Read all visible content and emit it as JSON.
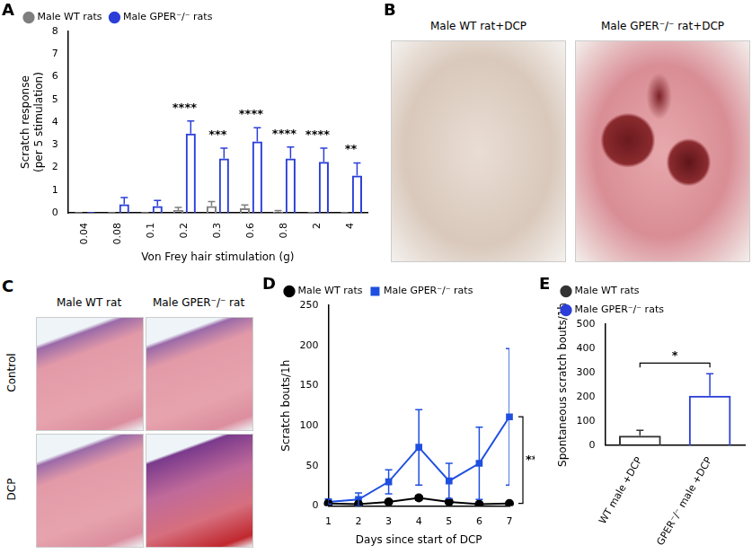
{
  "chart_data": [
    {
      "panel": "A",
      "type": "bar",
      "x_label": "Von Frey hair stimulation (g)",
      "y_label": [
        "Scratch response",
        "(per 5 stimulation)"
      ],
      "categories": [
        "0.04",
        "0.08",
        "0.1",
        "0.2",
        "0.3",
        "0.6",
        "0.8",
        "2",
        "4"
      ],
      "series": [
        {
          "name": "Male WT rats",
          "color": "#7f7f7f",
          "marker": "circle",
          "values": [
            0,
            0,
            0,
            0.12,
            0.3,
            0.2,
            0.05,
            0,
            0
          ],
          "errors": [
            0,
            0,
            0,
            0.12,
            0.2,
            0.15,
            0.05,
            0,
            0
          ]
        },
        {
          "name": "Male GPER⁻/⁻ rats",
          "color": "#2b3fd8",
          "marker": "circle",
          "values": [
            0,
            0.38,
            0.3,
            3.5,
            2.4,
            3.15,
            2.4,
            2.25,
            1.65
          ],
          "errors": [
            0,
            0.3,
            0.25,
            0.55,
            0.45,
            0.6,
            0.5,
            0.6,
            0.55
          ]
        }
      ],
      "ylim": [
        0,
        8
      ],
      "yticks": [
        0,
        1,
        2,
        3,
        4,
        5,
        6,
        7,
        8
      ],
      "grid": false,
      "legend": "top-left",
      "annotations": [
        {
          "category": "0.2",
          "text": "****"
        },
        {
          "category": "0.3",
          "text": "***"
        },
        {
          "category": "0.6",
          "text": "****"
        },
        {
          "category": "0.8",
          "text": "****"
        },
        {
          "category": "2",
          "text": "****"
        },
        {
          "category": "4",
          "text": "**"
        }
      ]
    },
    {
      "panel": "D",
      "type": "line",
      "x_label": "Days since start of DCP",
      "y_label": "Scratch bouts/1h",
      "categories": [
        "1",
        "2",
        "3",
        "4",
        "5",
        "6",
        "7"
      ],
      "series": [
        {
          "name": "Male WT rats",
          "color": "#000000",
          "marker": "circle",
          "values": [
            3,
            2,
            5,
            10,
            5,
            2,
            3
          ],
          "errors": [
            1,
            1,
            2,
            3,
            2,
            1,
            1
          ]
        },
        {
          "name": "Male GPER⁻/⁻ rats",
          "color": "#1f4fe0",
          "marker": "square",
          "values": [
            5,
            8,
            30,
            73,
            31,
            53,
            111
          ],
          "errors": [
            3,
            8,
            15,
            47,
            22,
            45,
            85
          ]
        }
      ],
      "ylim": [
        0,
        250
      ],
      "yticks": [
        0,
        50,
        100,
        150,
        200,
        250
      ],
      "grid": false,
      "legend": "top-left",
      "annotations": [
        {
          "category": "7",
          "text": "**"
        }
      ]
    },
    {
      "panel": "E",
      "type": "bar",
      "y_label": "Spontaneous scratch bouts/1h",
      "categories": [
        "WT male +DCP",
        "GPER⁻/⁻ male +DCP"
      ],
      "series": [
        {
          "name": "Male WT rats",
          "color": "#333333",
          "marker": "circle",
          "values": [
            40,
            null
          ],
          "errors": [
            22,
            null
          ]
        },
        {
          "name": "Male GPER⁻/⁻ rats",
          "color": "#2b3fd8",
          "marker": "circle",
          "values": [
            null,
            205
          ],
          "errors": [
            null,
            90
          ]
        }
      ],
      "ylim": [
        0,
        500
      ],
      "yticks": [
        0,
        100,
        200,
        300,
        400,
        500
      ],
      "grid": false,
      "legend": "top-left",
      "annotations": [
        {
          "text": "*"
        }
      ]
    }
  ],
  "images": [
    {
      "panel": "B",
      "labels": [
        "Male WT rat+DCP",
        "Male GPER⁻/⁻ rat+DCP"
      ]
    },
    {
      "panel": "C",
      "columns": [
        "Male WT rat",
        "Male GPER⁻/⁻ rat"
      ],
      "rows": [
        "Control",
        "DCP"
      ]
    }
  ]
}
